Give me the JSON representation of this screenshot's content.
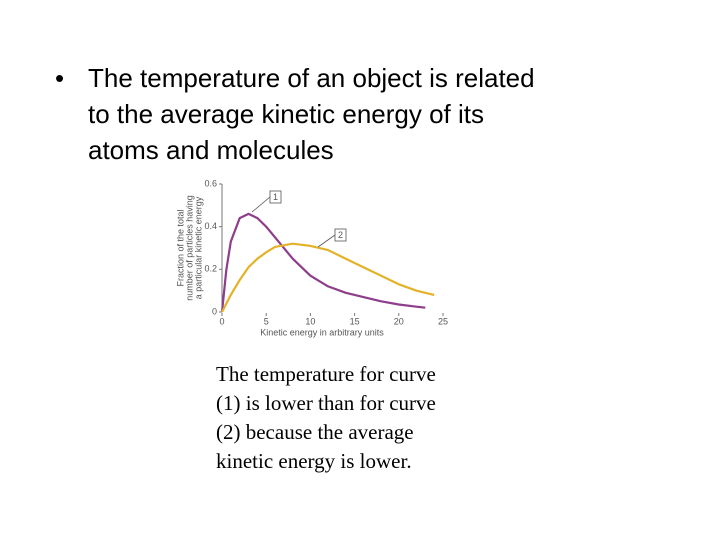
{
  "bullet": {
    "marker": "•",
    "lines": [
      "The temperature of an object is related",
      "to the average kinetic energy of its",
      "atoms and molecules"
    ]
  },
  "caption": {
    "lines": [
      "The temperature for curve",
      "(1) is lower than for curve",
      "(2) because the average",
      "kinetic energy is lower."
    ]
  },
  "chart_data": {
    "type": "line",
    "ylabel": [
      "Fraction of the total",
      "number of particles having",
      "a particular kinetic energy"
    ],
    "xlabel": "Kinetic energy in arbitrary units",
    "x": [
      0,
      0.5,
      1,
      2,
      3,
      4,
      5,
      6,
      8,
      10,
      12,
      14,
      16,
      18,
      20,
      22,
      23,
      24
    ],
    "series": [
      {
        "name": "1",
        "color": "#8e3d8a",
        "values": [
          0,
          0.2,
          0.33,
          0.44,
          0.46,
          0.44,
          0.4,
          0.35,
          0.25,
          0.17,
          0.12,
          0.09,
          0.07,
          0.05,
          0.035,
          0.025,
          0.02,
          null
        ]
      },
      {
        "name": "2",
        "color": "#e3b22a",
        "values": [
          0,
          0.04,
          0.08,
          0.15,
          0.21,
          0.25,
          0.28,
          0.305,
          0.32,
          0.31,
          0.29,
          0.25,
          0.21,
          0.17,
          0.13,
          0.1,
          0.09,
          0.08
        ]
      }
    ],
    "xlim": [
      0,
      25
    ],
    "xticks": [
      0,
      5,
      10,
      15,
      20,
      25
    ],
    "ylim": [
      0,
      0.6
    ],
    "yticks": [
      0,
      0.2,
      0.4,
      0.6
    ]
  }
}
